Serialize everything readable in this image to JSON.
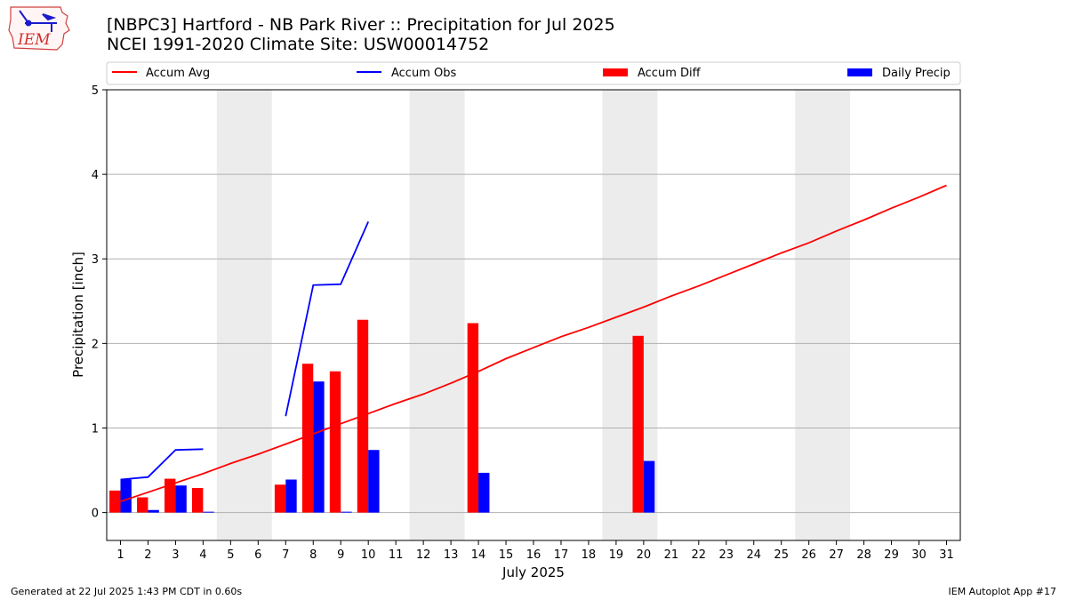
{
  "header": {
    "title_line1": "[NBPC3] Hartford - NB Park River :: Precipitation for Jul 2025",
    "title_line2": "NCEI 1991-2020 Climate Site: USW00014752"
  },
  "logo": {
    "text": "IEM",
    "icon": "iowa-map-logo"
  },
  "footer": {
    "generated": "Generated at 22 Jul 2025 1:43 PM CDT in 0.60s",
    "app": "IEM Autoplot App #17"
  },
  "colors": {
    "accum_avg": "#ff0000",
    "accum_obs": "#0000ff",
    "accum_diff": "#ff0000",
    "daily_precip": "#0000ff",
    "weekend": "#ececec",
    "grid": "#b0b0b0"
  },
  "chart_data": {
    "type": "bar",
    "xlabel": "July 2025",
    "ylabel": "Precipitation [inch]",
    "xlim": [
      0.5,
      31.5
    ],
    "ylim": [
      -0.33,
      5.0
    ],
    "yticks": [
      0,
      1,
      2,
      3,
      4,
      5
    ],
    "grid": "horizontal",
    "legend_position": "top",
    "days": [
      1,
      2,
      3,
      4,
      5,
      6,
      7,
      8,
      9,
      10,
      11,
      12,
      13,
      14,
      15,
      16,
      17,
      18,
      19,
      20,
      21,
      22,
      23,
      24,
      25,
      26,
      27,
      28,
      29,
      30,
      31
    ],
    "weekends": [
      [
        5,
        6
      ],
      [
        12,
        13
      ],
      [
        19,
        20
      ],
      [
        26,
        27
      ]
    ],
    "legend": [
      "Accum Avg",
      "Accum Obs",
      "Accum Diff",
      "Daily Precip"
    ],
    "series": [
      {
        "name": "Accum Avg",
        "kind": "line",
        "x": [
          1,
          2,
          3,
          4,
          5,
          6,
          7,
          8,
          9,
          10,
          11,
          12,
          13,
          14,
          15,
          16,
          17,
          18,
          19,
          20,
          21,
          22,
          23,
          24,
          25,
          26,
          27,
          28,
          29,
          30,
          31
        ],
        "values": [
          0.13,
          0.24,
          0.35,
          0.46,
          0.58,
          0.69,
          0.81,
          0.93,
          1.05,
          1.17,
          1.29,
          1.4,
          1.53,
          1.67,
          1.82,
          1.95,
          2.08,
          2.19,
          2.31,
          2.43,
          2.56,
          2.68,
          2.81,
          2.94,
          3.07,
          3.19,
          3.33,
          3.46,
          3.6,
          3.73,
          3.87
        ]
      },
      {
        "name": "Accum Obs",
        "kind": "line",
        "segments": [
          {
            "x": [
              1,
              2,
              3,
              4
            ],
            "values": [
              0.39,
              0.42,
              0.74,
              0.75
            ]
          },
          {
            "x": [
              7,
              8,
              9,
              10
            ],
            "values": [
              1.14,
              2.69,
              2.7,
              3.44
            ]
          }
        ]
      },
      {
        "name": "Accum Diff",
        "kind": "bar",
        "x": [
          1,
          2,
          3,
          4,
          7,
          8,
          9,
          10,
          14,
          20
        ],
        "values": [
          0.26,
          0.18,
          0.4,
          0.29,
          0.33,
          1.76,
          1.67,
          2.28,
          2.24,
          2.09
        ]
      },
      {
        "name": "Daily Precip",
        "kind": "bar",
        "x": [
          1,
          2,
          3,
          4,
          7,
          8,
          9,
          10,
          14,
          20
        ],
        "values": [
          0.39,
          0.03,
          0.32,
          0.01,
          0.39,
          1.55,
          0.01,
          0.74,
          0.47,
          0.61
        ]
      }
    ]
  }
}
